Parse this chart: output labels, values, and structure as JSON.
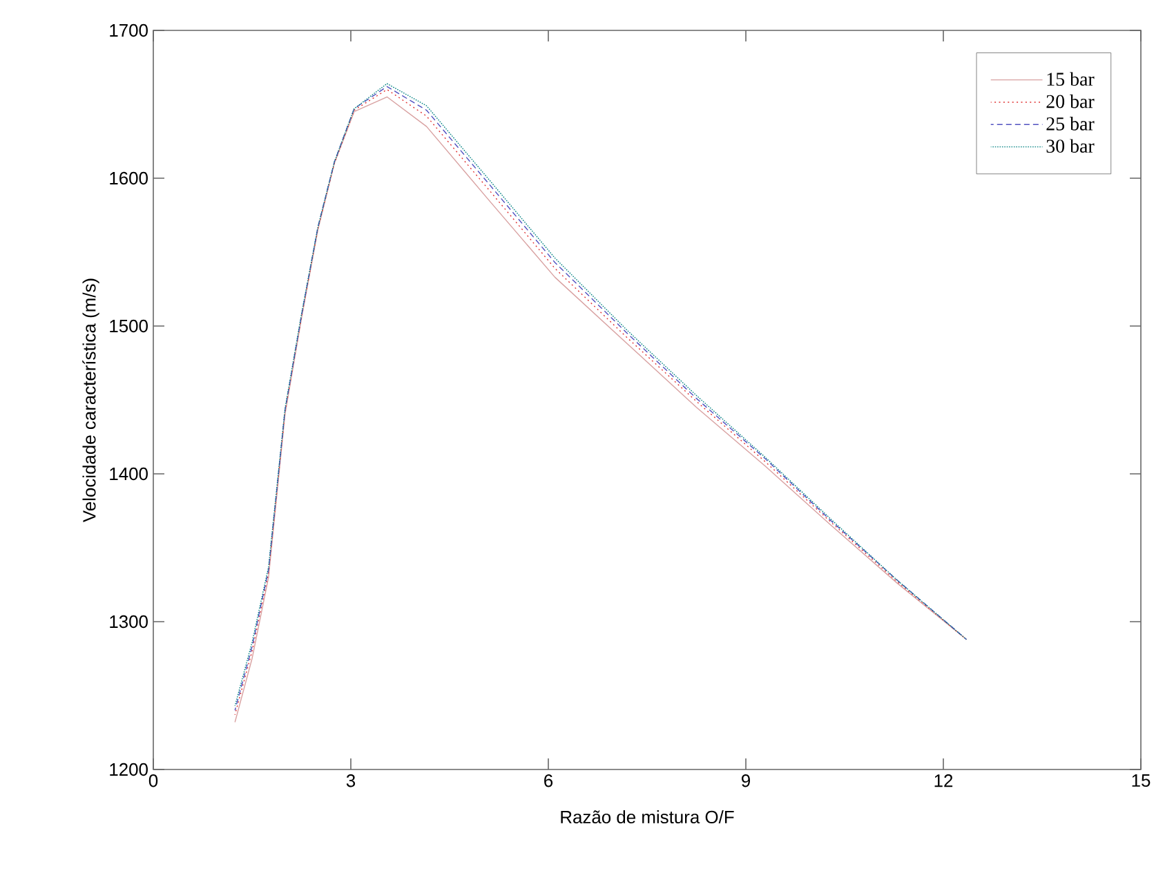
{
  "chart_data": {
    "type": "line",
    "xlabel": "Razão de mistura O/F",
    "ylabel": "Velocidade característica (m/s)",
    "x": [
      1.24,
      1.5,
      1.75,
      2.0,
      2.25,
      2.5,
      2.75,
      3.05,
      3.55,
      4.15,
      5.1,
      6.1,
      7.2,
      8.25,
      9.3,
      10.3,
      11.3,
      12.35
    ],
    "series": [
      {
        "name": "15 bar",
        "color": "#d8a0a0",
        "line_style": "solid",
        "values": [
          1232,
          1275,
          1330,
          1440,
          1505,
          1565,
          1610,
          1645,
          1655,
          1635,
          1585,
          1533,
          1488,
          1445,
          1405,
          1365,
          1326,
          1288
        ]
      },
      {
        "name": "20 bar",
        "color": "#e03030",
        "line_style": "dotted",
        "values": [
          1237,
          1280,
          1333,
          1442,
          1506,
          1566,
          1610,
          1646,
          1660,
          1642,
          1592,
          1539,
          1492,
          1449,
          1408,
          1367,
          1327,
          1288
        ]
      },
      {
        "name": "25 bar",
        "color": "#5050c0",
        "line_style": "dashed",
        "values": [
          1240,
          1283,
          1335,
          1443,
          1507,
          1567,
          1611,
          1647,
          1662,
          1646,
          1596,
          1543,
          1495,
          1451,
          1410,
          1368,
          1328,
          1288
        ]
      },
      {
        "name": "30 bar",
        "color": "#008080",
        "line_style": "densely dotted",
        "values": [
          1243,
          1286,
          1337,
          1444,
          1508,
          1567,
          1611,
          1647,
          1664,
          1649,
          1599,
          1546,
          1497,
          1453,
          1411,
          1369,
          1328,
          1288
        ]
      }
    ],
    "xlim": [
      0,
      15
    ],
    "xticks": [
      0,
      3,
      6,
      9,
      12,
      15
    ],
    "ylim": [
      1200,
      1700
    ],
    "yticks": [
      1200,
      1300,
      1400,
      1500,
      1600,
      1700
    ],
    "legend": "top right",
    "grid": false,
    "marker": "none"
  }
}
